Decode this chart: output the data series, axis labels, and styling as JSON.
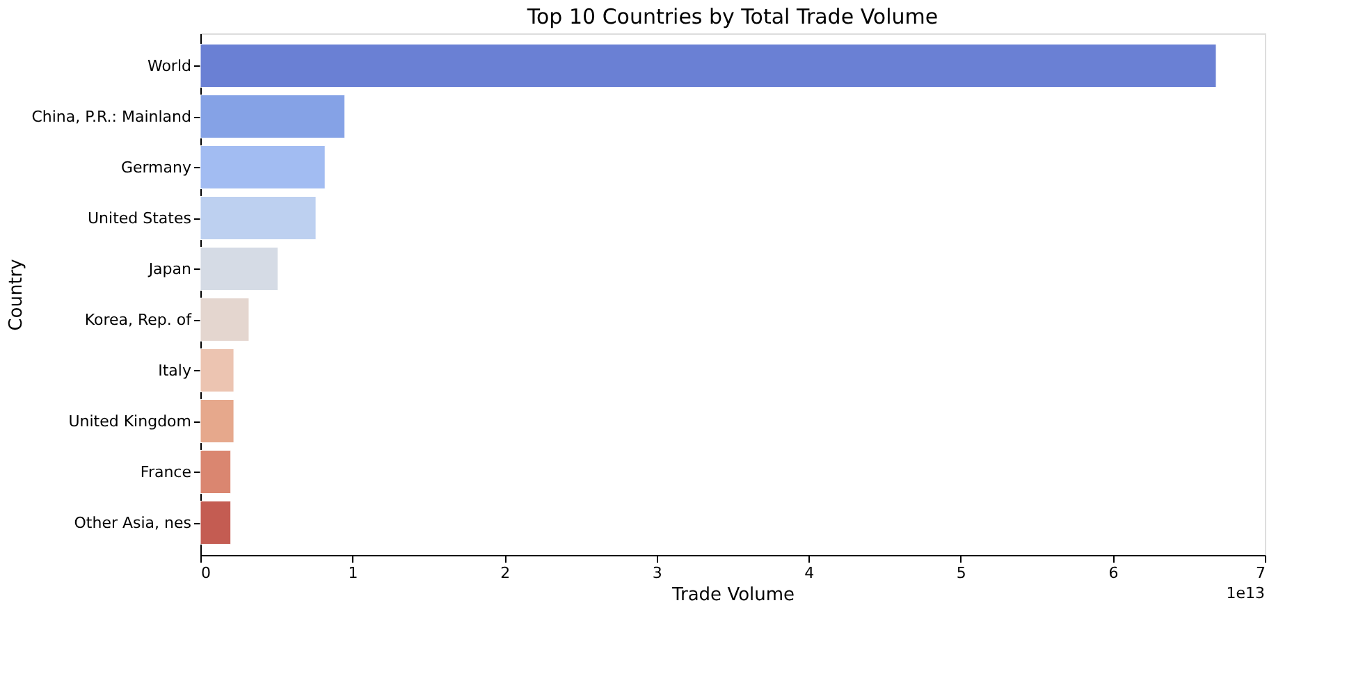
{
  "chart_data": {
    "type": "bar",
    "orientation": "horizontal",
    "title": "Top 10 Countries by Total Trade Volume",
    "xlabel": "Trade Volume",
    "ylabel": "Country",
    "categories": [
      "World",
      "China, P.R.: Mainland",
      "Germany",
      "United States",
      "Japan",
      "Korea, Rep. of",
      "Italy",
      "United Kingdom",
      "France",
      "Other Asia, nes"
    ],
    "values": [
      6.68,
      0.95,
      0.82,
      0.76,
      0.51,
      0.32,
      0.22,
      0.22,
      0.2,
      0.2
    ],
    "colors": [
      "#6a80d4",
      "#85a2e6",
      "#a2bcf2",
      "#bdd0f0",
      "#d5dbe5",
      "#e4d6cf",
      "#ecc4b1",
      "#e6a88c",
      "#da8670",
      "#c45c52"
    ],
    "xlim": [
      0,
      7
    ],
    "xticks": [
      0,
      1,
      2,
      3,
      4,
      5,
      6,
      7
    ],
    "grid": false,
    "legend": false,
    "annotations": [
      "1e13"
    ]
  }
}
